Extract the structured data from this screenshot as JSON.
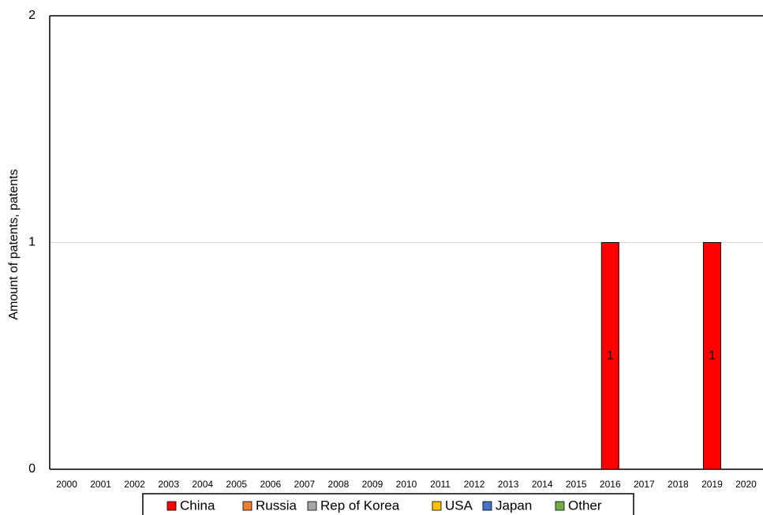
{
  "chart_data": {
    "type": "bar",
    "stacked": true,
    "y_label": "Amount of patents, patents",
    "categories": [
      "2000",
      "2001",
      "2002",
      "2003",
      "2004",
      "2005",
      "2006",
      "2007",
      "2008",
      "2009",
      "2010",
      "2011",
      "2012",
      "2013",
      "2014",
      "2015",
      "2016",
      "2017",
      "2018",
      "2019",
      "2020"
    ],
    "series": [
      {
        "name": "China",
        "color": "#ff0000",
        "values": [
          0,
          0,
          0,
          0,
          0,
          0,
          0,
          0,
          0,
          0,
          0,
          0,
          0,
          0,
          0,
          0,
          1,
          0,
          0,
          1,
          0
        ]
      },
      {
        "name": "Russia",
        "color": "#ed7d31",
        "values": [
          0,
          0,
          0,
          0,
          0,
          0,
          0,
          0,
          0,
          0,
          0,
          0,
          0,
          0,
          0,
          0,
          0,
          0,
          0,
          0,
          0
        ]
      },
      {
        "name": "Rep of Korea",
        "color": "#a5a5a5",
        "values": [
          0,
          0,
          0,
          0,
          0,
          0,
          0,
          0,
          0,
          0,
          0,
          0,
          0,
          0,
          0,
          0,
          0,
          0,
          0,
          0,
          0
        ]
      },
      {
        "name": "USA",
        "color": "#ffc000",
        "values": [
          0,
          0,
          0,
          0,
          0,
          0,
          0,
          0,
          0,
          0,
          0,
          0,
          0,
          0,
          0,
          0,
          0,
          0,
          0,
          0,
          0
        ]
      },
      {
        "name": "Japan",
        "color": "#4472c4",
        "values": [
          0,
          0,
          0,
          0,
          0,
          0,
          0,
          0,
          0,
          0,
          0,
          0,
          0,
          0,
          0,
          0,
          0,
          0,
          0,
          0,
          0
        ]
      },
      {
        "name": "Other",
        "color": "#70ad47",
        "values": [
          0,
          0,
          0,
          0,
          0,
          0,
          0,
          0,
          0,
          0,
          0,
          0,
          0,
          0,
          0,
          0,
          0,
          0,
          0,
          0,
          0
        ]
      }
    ],
    "ylim": [
      0,
      2
    ],
    "yticks": [
      0,
      1,
      2
    ],
    "grid": true,
    "legend": "bottom"
  }
}
